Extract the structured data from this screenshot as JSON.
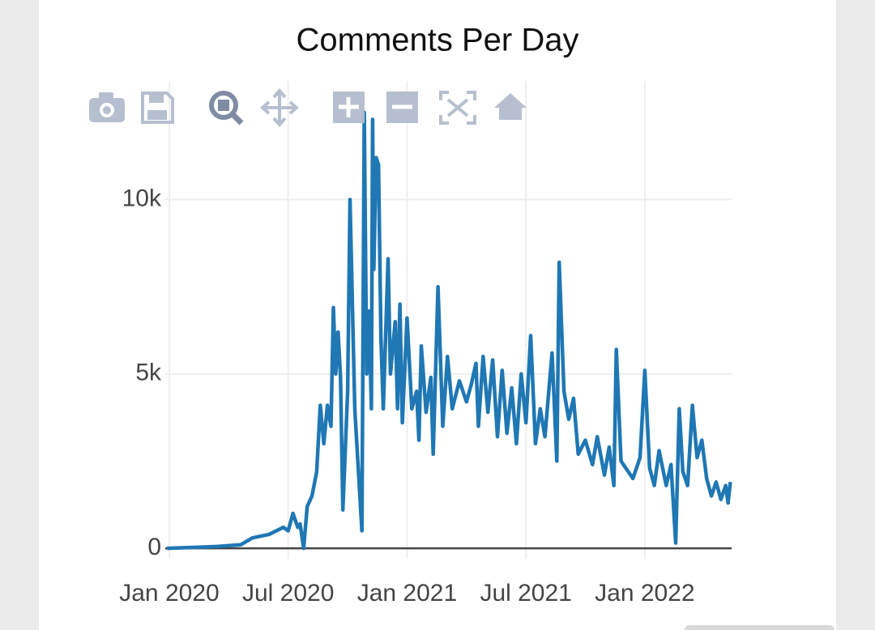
{
  "chart_data": {
    "type": "line",
    "title": "Comments Per Day",
    "color": "#1f77b4",
    "grid": true,
    "xlim": [
      2019.983,
      2022.365
    ],
    "xticks": [
      {
        "value": 2020.0,
        "label": "Jan 2020"
      },
      {
        "value": 2020.5,
        "label": "Jul 2020"
      },
      {
        "value": 2021.0,
        "label": "Jan 2021"
      },
      {
        "value": 2021.5,
        "label": "Jul 2021"
      },
      {
        "value": 2022.0,
        "label": "Jan 2022"
      }
    ],
    "ylim": [
      -300,
      13400
    ],
    "yticks": [
      0,
      {
        "value": 5000,
        "label": "5k"
      },
      {
        "value": 10000,
        "label": "10k"
      }
    ],
    "x": [
      2019.99,
      2020.2,
      2020.3,
      2020.35,
      2020.42,
      2020.48,
      2020.5,
      2020.52,
      2020.54,
      2020.55,
      2020.565,
      2020.58,
      2020.6,
      2020.62,
      2020.635,
      2020.65,
      2020.665,
      2020.68,
      2020.69,
      2020.7,
      2020.71,
      2020.72,
      2020.73,
      2020.75,
      2020.76,
      2020.78,
      2020.81,
      2020.82,
      2020.83,
      2020.84,
      2020.85,
      2020.855,
      2020.86,
      2020.87,
      2020.88,
      2020.89,
      2020.9,
      2020.92,
      2020.93,
      2020.95,
      2020.96,
      2020.97,
      2020.98,
      2021.0,
      2021.02,
      2021.04,
      2021.05,
      2021.06,
      2021.08,
      2021.1,
      2021.11,
      2021.13,
      2021.15,
      2021.17,
      2021.19,
      2021.22,
      2021.25,
      2021.27,
      2021.29,
      2021.3,
      2021.32,
      2021.34,
      2021.36,
      2021.38,
      2021.4,
      2021.42,
      2021.44,
      2021.46,
      2021.48,
      2021.5,
      2021.52,
      2021.54,
      2021.56,
      2021.58,
      2021.61,
      2021.63,
      2021.64,
      2021.66,
      2021.68,
      2021.7,
      2021.72,
      2021.75,
      2021.78,
      2021.8,
      2021.83,
      2021.85,
      2021.87,
      2021.88,
      2021.9,
      2021.92,
      2021.95,
      2021.98,
      2022.0,
      2022.02,
      2022.04,
      2022.06,
      2022.09,
      2022.11,
      2022.13,
      2022.145,
      2022.16,
      2022.18,
      2022.2,
      2022.22,
      2022.24,
      2022.26,
      2022.28,
      2022.3,
      2022.32,
      2022.34,
      2022.35,
      2022.36
    ],
    "values": [
      0,
      50,
      100,
      300,
      400,
      600,
      500,
      1000,
      600,
      700,
      0,
      1200,
      1500,
      2200,
      4100,
      3000,
      4100,
      3500,
      6900,
      5000,
      6200,
      4900,
      1100,
      4500,
      10000,
      4000,
      500,
      12500,
      5000,
      6800,
      4000,
      12300,
      8000,
      11200,
      11000,
      6000,
      4000,
      8300,
      5000,
      6500,
      4000,
      7000,
      3600,
      6600,
      4000,
      4500,
      3100,
      5800,
      3900,
      4900,
      2700,
      7500,
      3500,
      5500,
      4000,
      4800,
      4200,
      4700,
      5300,
      3500,
      5500,
      3900,
      5400,
      3200,
      5100,
      3300,
      4600,
      3000,
      5000,
      3600,
      6100,
      3000,
      4000,
      3200,
      5600,
      2500,
      8200,
      4500,
      3700,
      4300,
      2700,
      3100,
      2400,
      3200,
      2100,
      2900,
      1800,
      5700,
      2500,
      2300,
      2000,
      2600,
      5100,
      2300,
      1800,
      2800,
      1800,
      2400,
      150,
      4000,
      2200,
      1800,
      4100,
      2600,
      3100,
      2000,
      1500,
      1900,
      1400,
      1800,
      1300,
      1900
    ]
  }
}
